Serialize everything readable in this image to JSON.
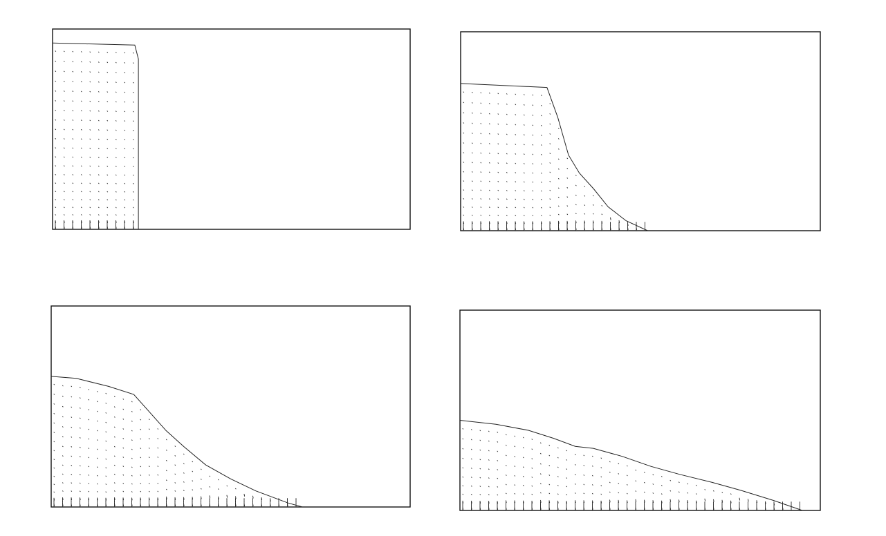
{
  "figure": {
    "description_visible_text": [],
    "panel_count": 4,
    "line_color": "#222222",
    "vector_color": "#333333",
    "background_color": "#ffffff"
  },
  "panels": [
    {
      "name": "panel-1",
      "profile": [
        [
          0,
          0.93
        ],
        [
          0.23,
          0.92
        ],
        [
          0.24,
          0.85
        ],
        [
          0.24,
          0.0
        ]
      ]
    },
    {
      "name": "panel-2",
      "profile": [
        [
          0,
          0.74
        ],
        [
          0.24,
          0.72
        ],
        [
          0.27,
          0.57
        ],
        [
          0.3,
          0.38
        ],
        [
          0.33,
          0.29
        ],
        [
          0.37,
          0.21
        ],
        [
          0.41,
          0.12
        ],
        [
          0.46,
          0.05
        ],
        [
          0.52,
          0.0
        ]
      ]
    },
    {
      "name": "panel-3",
      "profile": [
        [
          0,
          0.65
        ],
        [
          0.07,
          0.64
        ],
        [
          0.16,
          0.6
        ],
        [
          0.23,
          0.56
        ],
        [
          0.28,
          0.46
        ],
        [
          0.32,
          0.38
        ],
        [
          0.37,
          0.3
        ],
        [
          0.43,
          0.21
        ],
        [
          0.5,
          0.14
        ],
        [
          0.57,
          0.08
        ],
        [
          0.66,
          0.02
        ],
        [
          0.7,
          0.0
        ]
      ]
    },
    {
      "name": "panel-4",
      "profile": [
        [
          0,
          0.45
        ],
        [
          0.1,
          0.43
        ],
        [
          0.19,
          0.4
        ],
        [
          0.26,
          0.36
        ],
        [
          0.32,
          0.32
        ],
        [
          0.37,
          0.31
        ],
        [
          0.45,
          0.27
        ],
        [
          0.53,
          0.22
        ],
        [
          0.61,
          0.18
        ],
        [
          0.7,
          0.14
        ],
        [
          0.78,
          0.1
        ],
        [
          0.87,
          0.05
        ],
        [
          0.95,
          0.0
        ]
      ]
    }
  ]
}
